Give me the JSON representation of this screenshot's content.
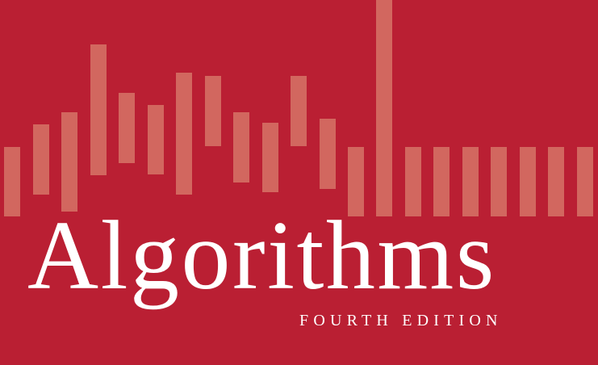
{
  "cover": {
    "title": "Algorithms",
    "subtitle": "FOURTH EDITION"
  },
  "colors": {
    "background": "#ba1f33",
    "bar": "#d2675f",
    "text": "#ffffff"
  }
}
